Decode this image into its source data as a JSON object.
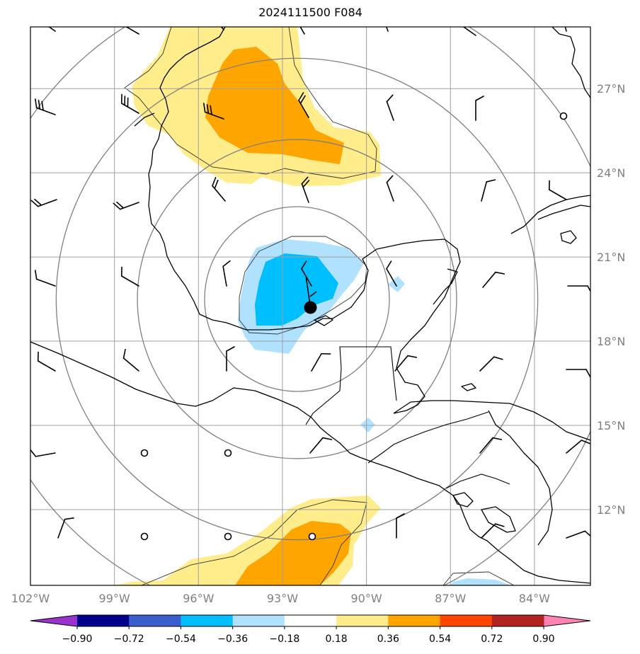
{
  "title": "2024111500 F084",
  "map": {
    "lon_labels": [
      {
        "lon": -102,
        "text": "102°W"
      },
      {
        "lon": -99,
        "text": "99°W"
      },
      {
        "lon": -96,
        "text": "96°W"
      },
      {
        "lon": -93,
        "text": "93°W"
      },
      {
        "lon": -90,
        "text": "90°W"
      },
      {
        "lon": -87,
        "text": "87°W"
      },
      {
        "lon": -84,
        "text": "84°W"
      }
    ],
    "lat_labels": [
      {
        "lat": 27,
        "text": "27°N"
      },
      {
        "lat": 24,
        "text": "24°N"
      },
      {
        "lat": 21,
        "text": "21°N"
      },
      {
        "lat": 18,
        "text": "18°N"
      },
      {
        "lat": 15,
        "text": "15°N"
      },
      {
        "lat": 12,
        "text": "12°N"
      }
    ],
    "center_marker": {
      "lon": -92.0,
      "lat": 19.2
    },
    "range_ring_radii_deg": [
      3.3,
      5.7,
      8.6,
      11.5
    ]
  },
  "colorbar": {
    "ticks": [
      "−0.90",
      "−0.72",
      "−0.54",
      "−0.36",
      "−0.18",
      "0.18",
      "0.36",
      "0.54",
      "0.72",
      "0.90"
    ],
    "under_color": "#9a32cd",
    "over_color": "#ff83b4",
    "colors": [
      "#00008b",
      "#3a5fcd",
      "#00bfff",
      "#b0e2ff",
      "#ffffff",
      "#ffec8b",
      "#ffa500",
      "#ff4500",
      "#b22222"
    ]
  },
  "palette": {
    "pos_light": "#ffec8b",
    "pos_mid": "#ffa500",
    "neg_light": "#b0e2ff",
    "neg_mid": "#00bfff"
  }
}
